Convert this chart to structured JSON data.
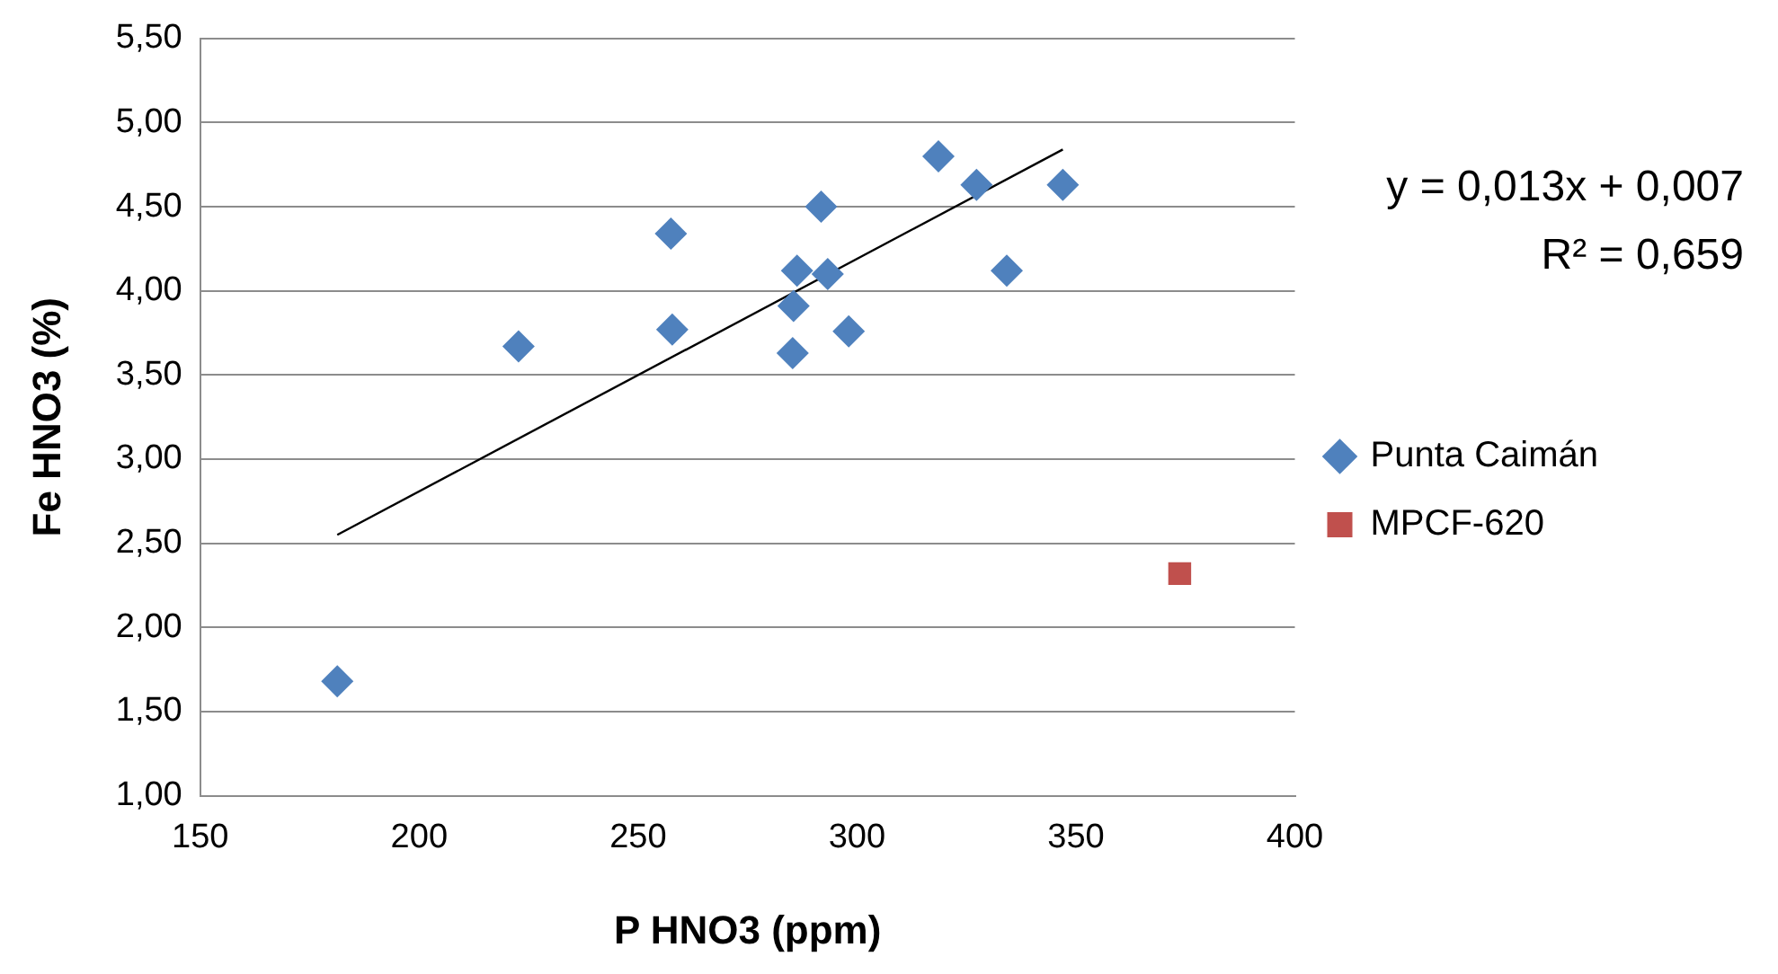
{
  "chart_data": {
    "type": "scatter",
    "xlabel": "P HNO3 (ppm)",
    "ylabel": "Fe HNO3 (%)",
    "xlim": [
      150,
      400
    ],
    "xticks": [
      150,
      200,
      250,
      300,
      350,
      400
    ],
    "ylim": [
      1,
      5.5
    ],
    "yticks": [
      {
        "value": 1,
        "label": "1,00"
      },
      {
        "value": 1.5,
        "label": "1,50"
      },
      {
        "value": 2,
        "label": "2,00"
      },
      {
        "value": 2.5,
        "label": "2,50"
      },
      {
        "value": 3,
        "label": "3,00"
      },
      {
        "value": 3.5,
        "label": "3,50"
      },
      {
        "value": 4,
        "label": "4,00"
      },
      {
        "value": 4.5,
        "label": "4,50"
      },
      {
        "value": 5,
        "label": "5,00"
      },
      {
        "value": 5.5,
        "label": "5,50"
      }
    ],
    "grid": "y",
    "legend": "right",
    "annotations": [
      "y = 0,013x + 0,007",
      "R² = 0,659"
    ],
    "series": [
      {
        "name": "Punta Caimán",
        "marker": "diamond",
        "color": "#4f81bd",
        "x": [
          181.3,
          222.7,
          257.5,
          257.8,
          285.3,
          285.5,
          286.3,
          293.3,
          291.8,
          298.1,
          318.6,
          327.3,
          347.0,
          334.2
        ],
        "values": [
          1.68,
          3.67,
          4.34,
          3.77,
          3.63,
          3.91,
          4.12,
          4.1,
          4.5,
          3.76,
          4.8,
          4.63,
          4.63,
          4.12
        ]
      },
      {
        "name": "MPCF-620",
        "marker": "square",
        "color": "#c0504d",
        "x": [
          373.7
        ],
        "values": [
          2.32
        ]
      },
      {
        "type": "line",
        "marker": "none",
        "color": "#000000",
        "x": [
          181.3,
          347.0
        ],
        "values": [
          2.55,
          4.84
        ]
      }
    ]
  }
}
